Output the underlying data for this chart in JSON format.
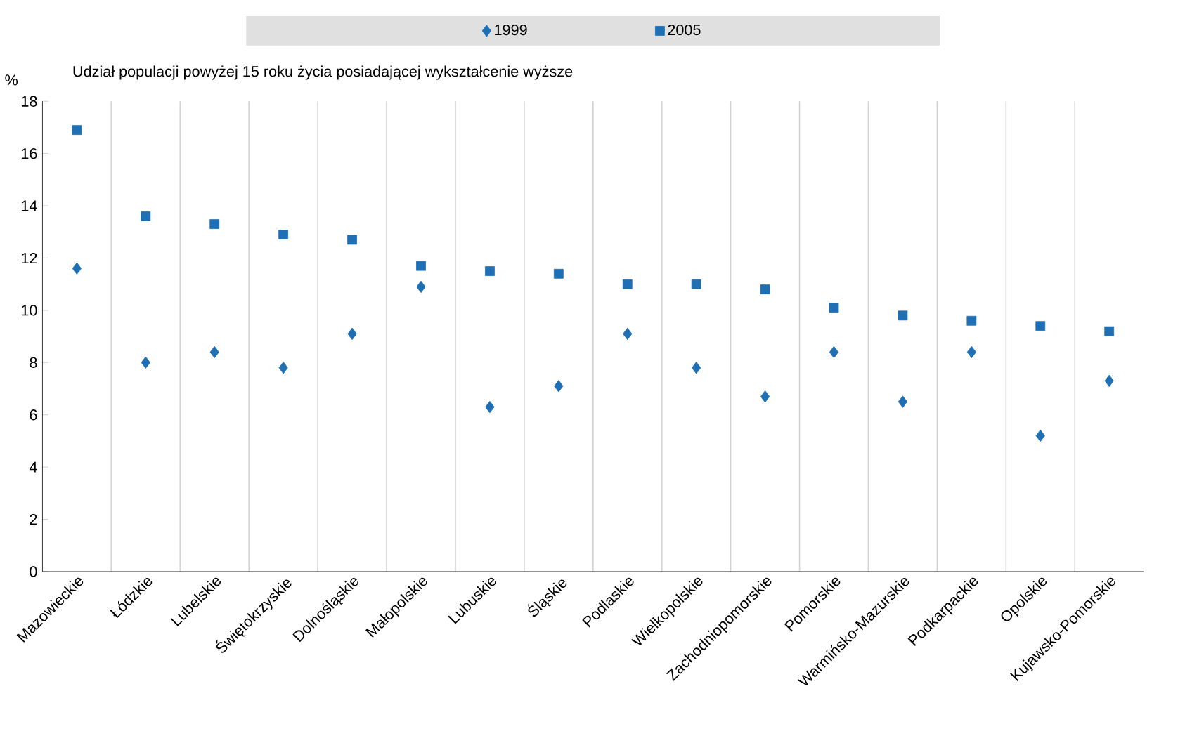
{
  "chart_data": {
    "type": "scatter",
    "title": "Udział populacji powyżej 15 roku życia posiadającej wykształcenie wyższe",
    "ylabel": "%",
    "categories": [
      "Mazowieckie",
      "Łódzkie",
      "Lubelskie",
      "Świętokrzyskie",
      "Dolnośląskie",
      "Małopolskie",
      "Lubuskie",
      "Śląskie",
      "Podlaskie",
      "Wielkopolskie",
      "Zachodniopomorskie",
      "Pomorskie",
      "Warmińsko-Mazurskie",
      "Podkarpackie",
      "Opolskie",
      "Kujawsko-Pomorskie"
    ],
    "series": [
      {
        "name": "1999",
        "color": "#1f6fb4",
        "marker": "diamond",
        "values": [
          11.6,
          8.0,
          8.4,
          7.8,
          9.1,
          10.9,
          6.3,
          7.1,
          9.1,
          7.8,
          6.7,
          8.4,
          6.5,
          8.4,
          5.2,
          7.3
        ]
      },
      {
        "name": "2005",
        "color": "#1f6fb4",
        "marker": "square",
        "values": [
          16.9,
          13.6,
          13.3,
          12.9,
          12.7,
          11.7,
          11.5,
          11.4,
          11.0,
          11.0,
          10.8,
          10.1,
          9.8,
          9.6,
          9.4,
          9.2
        ]
      }
    ],
    "ylim": [
      0,
      18
    ],
    "yticks": [
      0,
      2,
      4,
      6,
      8,
      10,
      12,
      14,
      16,
      18
    ],
    "grid": "x",
    "legend": "top"
  }
}
